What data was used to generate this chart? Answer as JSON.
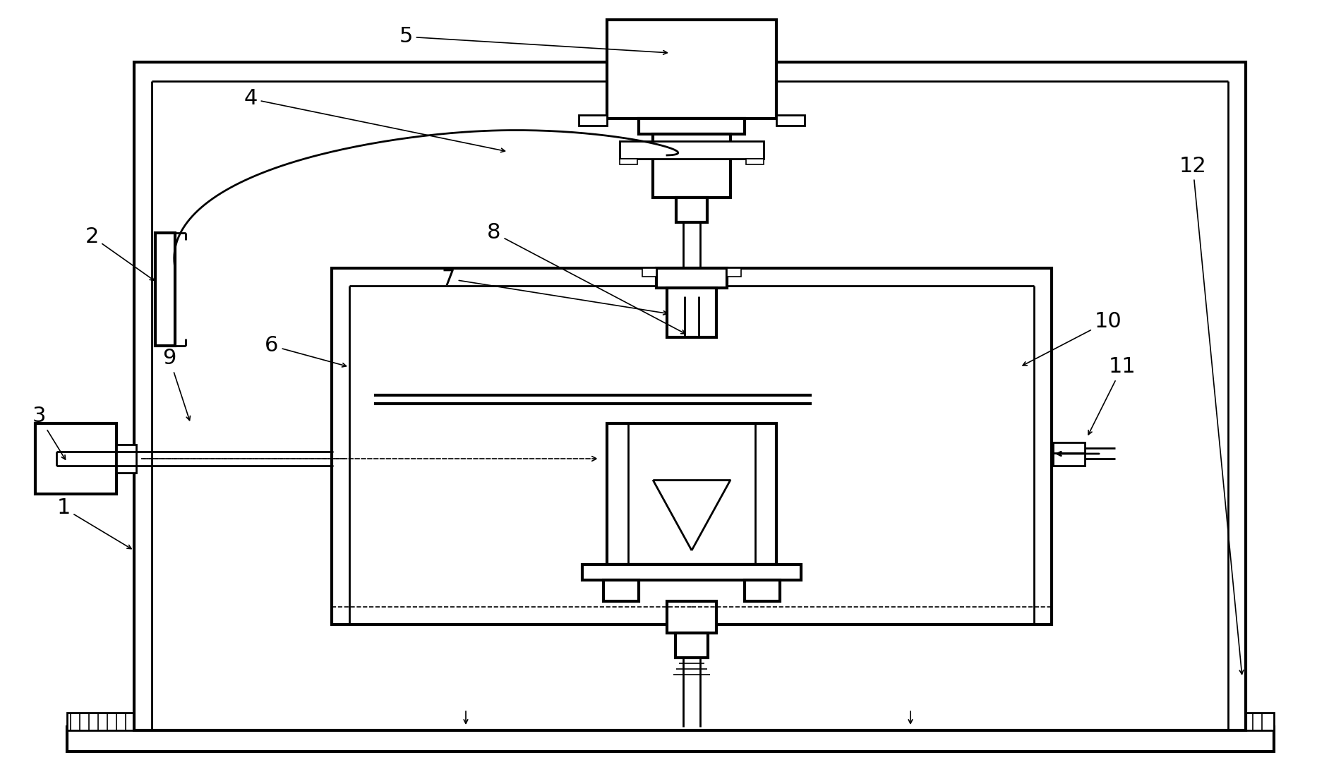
{
  "bg_color": "#ffffff",
  "line_color": "#000000",
  "label_color": "#000000",
  "fig_width": 19.0,
  "fig_height": 10.77
}
